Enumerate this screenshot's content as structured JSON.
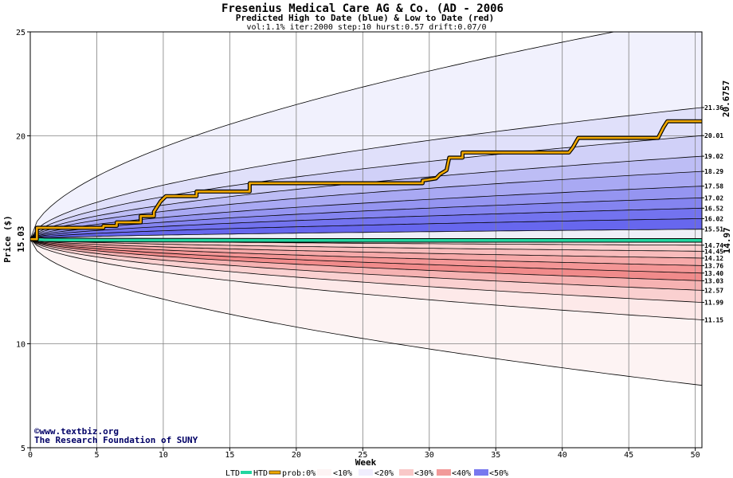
{
  "header": {
    "title": "Fresenius Medical Care AG & Co. (AD - 2006",
    "subtitle": "Predicted High to Date (blue) &  Low to Date (red)",
    "params": "vol:1.1% iter:2000 step:10 hurst:0.57 drift:0.07/0"
  },
  "credits": {
    "line1": "©www.textbiz.org",
    "line2": "The Research Foundation of SUNY"
  },
  "legend": {
    "ltd": "LTD",
    "htd": "HTD",
    "prob": "prob:0%",
    "b10": "<10%",
    "b20": "<20%",
    "b30": "<30%",
    "b40": "<40%",
    "b50": "<50%"
  },
  "colors": {
    "high_band": "#6666ee",
    "low_band": "#ee5555",
    "path": "#f0a800",
    "ltd_line": "#22d6a0",
    "start_label": "#000000",
    "ltd_label": "#008866",
    "htd_label": "#aa7700"
  },
  "chart_data": {
    "type": "area",
    "xlabel": "Week",
    "ylabel": "Price ($)",
    "xlim": [
      0,
      50.5
    ],
    "ylim": [
      5,
      25
    ],
    "xticks": [
      0,
      5,
      10,
      15,
      20,
      25,
      30,
      35,
      40,
      45,
      50
    ],
    "yticks": [
      5,
      10,
      20,
      25
    ],
    "grid": true,
    "start_price": "15.03",
    "ltd_final": "14.97",
    "htd_final": "20.6757",
    "high_band_finals": [
      {
        "value": 25.8,
        "label": ""
      },
      {
        "value": 21.36,
        "label": "21.36"
      },
      {
        "value": 20.01,
        "label": "20.01"
      },
      {
        "value": 19.02,
        "label": "19.02"
      },
      {
        "value": 18.29,
        "label": "18.29"
      },
      {
        "value": 17.58,
        "label": "17.58"
      },
      {
        "value": 17.02,
        "label": "17.02"
      },
      {
        "value": 16.52,
        "label": "16.52"
      },
      {
        "value": 16.02,
        "label": "16.02"
      },
      {
        "value": 15.51,
        "label": "15.51"
      }
    ],
    "low_band_finals": [
      {
        "value": 14.74,
        "label": "14.74"
      },
      {
        "value": 14.45,
        "label": "14.45"
      },
      {
        "value": 14.12,
        "label": "14.12"
      },
      {
        "value": 13.76,
        "label": "13.76"
      },
      {
        "value": 13.4,
        "label": "13.40"
      },
      {
        "value": 13.03,
        "label": "13.03"
      },
      {
        "value": 12.57,
        "label": "12.57"
      },
      {
        "value": 11.99,
        "label": "11.99"
      },
      {
        "value": 11.15,
        "label": "11.15"
      },
      {
        "value": 8.0,
        "label": ""
      }
    ],
    "ltd_series": {
      "name": "LTD",
      "x": [
        0,
        1,
        3,
        10,
        20,
        30,
        40,
        50.5
      ],
      "y": [
        15.03,
        15.0,
        14.99,
        14.98,
        14.975,
        14.972,
        14.97,
        14.97
      ]
    },
    "htd_series": {
      "name": "HTD",
      "x": [
        0,
        0.5,
        0.5,
        5.5,
        5.5,
        6.5,
        6.5,
        8.3,
        8.3,
        9.3,
        9.3,
        9.8,
        10.2,
        12.5,
        12.5,
        16.5,
        16.5,
        29.5,
        29.5,
        30.5,
        30.8,
        31.3,
        31.5,
        32.5,
        32.5,
        40.5,
        40.8,
        41.2,
        41.2,
        47.2,
        47.6,
        47.9,
        50.5
      ],
      "y": [
        15.03,
        15.03,
        15.58,
        15.58,
        15.67,
        15.67,
        15.84,
        15.84,
        16.14,
        16.14,
        16.35,
        16.85,
        17.1,
        17.1,
        17.32,
        17.32,
        17.72,
        17.72,
        17.85,
        17.95,
        18.15,
        18.35,
        18.95,
        18.95,
        19.2,
        19.2,
        19.45,
        19.9,
        19.9,
        19.9,
        20.4,
        20.7,
        20.7
      ]
    }
  }
}
